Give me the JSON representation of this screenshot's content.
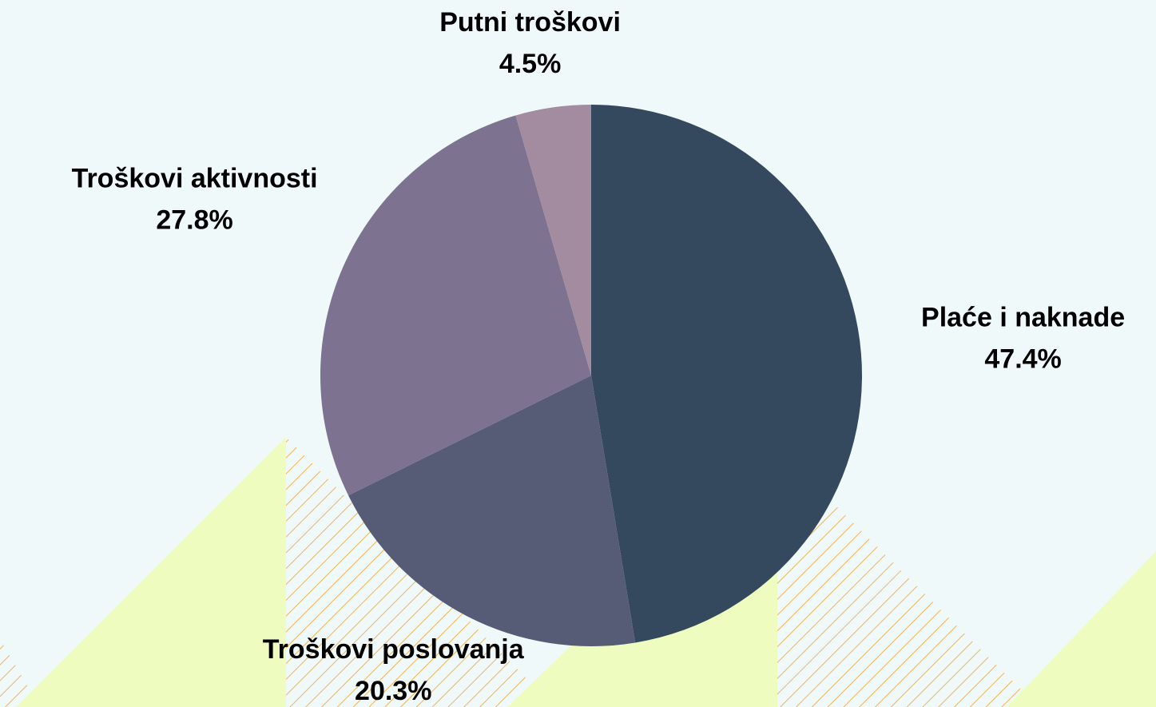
{
  "chart_data": {
    "type": "pie",
    "categories": [
      "Plaće i naknade",
      "Troškovi poslovanja",
      "Troškovi aktivnosti",
      "Putni troškovi"
    ],
    "values": [
      47.4,
      20.3,
      27.8,
      4.5
    ],
    "value_labels": [
      "47.4%",
      "20.3%",
      "27.8%",
      "4.5%"
    ],
    "colors": [
      "#34495e",
      "#575c76",
      "#7d7390",
      "#a38ba0"
    ]
  }
}
